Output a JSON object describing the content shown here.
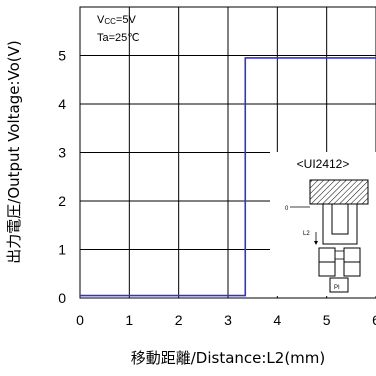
{
  "chart_data": {
    "type": "line",
    "x": [
      0,
      3.35,
      3.35,
      6
    ],
    "series": [
      {
        "values": [
          0.05,
          0.05,
          4.95,
          4.95
        ],
        "color": "#3333cc"
      }
    ],
    "xlabel": "移動距離/Distance:L2(mm)",
    "ylabel": "出力電圧/Output Voltage:Vo(V)",
    "xlim": [
      0,
      6
    ],
    "ylim": [
      0,
      6
    ],
    "xticks": [
      "0",
      "1",
      "2",
      "3",
      "4",
      "5",
      "6"
    ],
    "yticks": [
      "0",
      "1",
      "2",
      "3",
      "4",
      "5"
    ],
    "grid": true,
    "conditions": [
      "Vcc=5V",
      "Ta=25℃"
    ],
    "inset": {
      "title": "<UI2412>",
      "origin_label": "0",
      "distance_label": "L2",
      "chip_label": "PI"
    }
  }
}
